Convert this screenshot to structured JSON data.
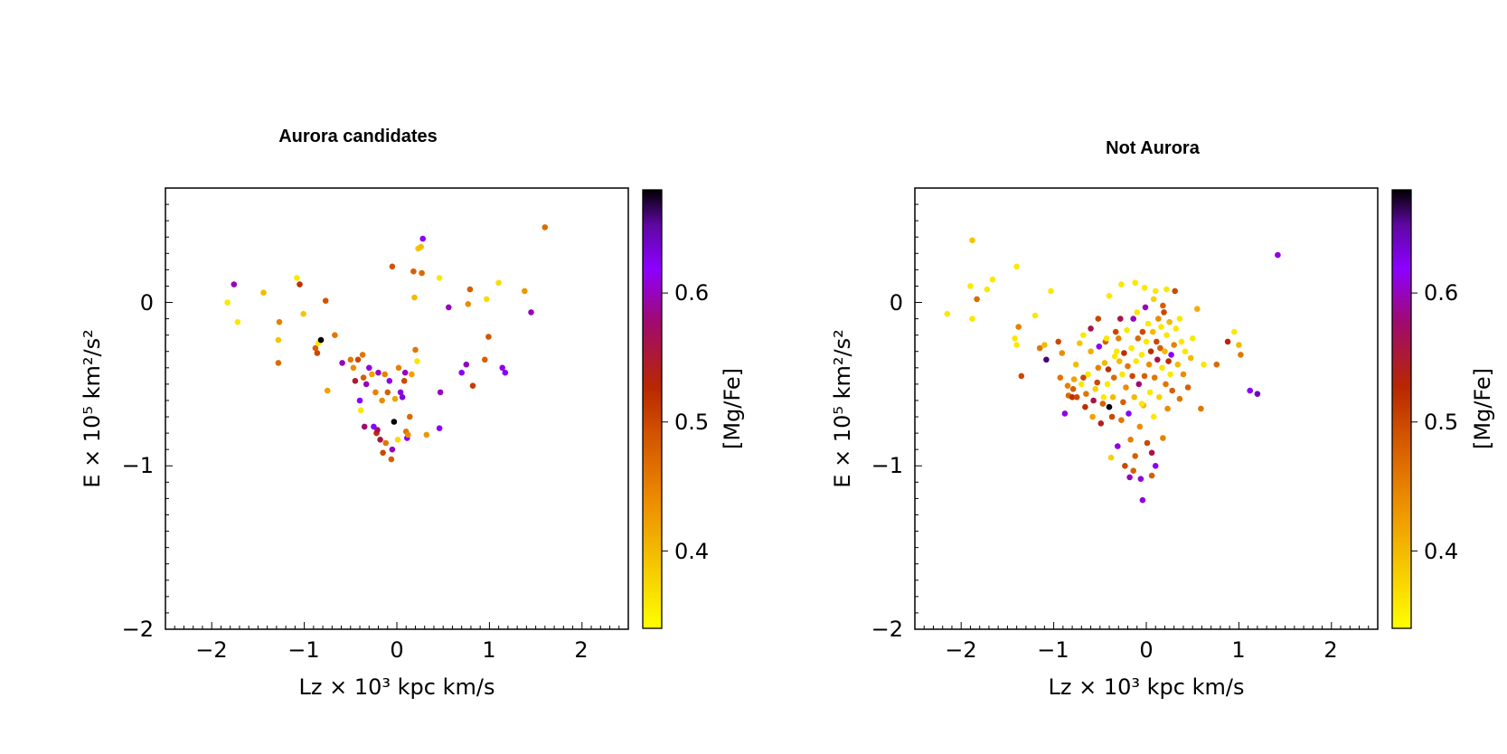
{
  "chart_data": [
    {
      "type": "scatter",
      "title": "Aurora candidates",
      "xlabel": "Lz × 10³ kpc km/s",
      "ylabel": "E × 10⁵ km²/s²",
      "colorbar_label": "[Mg/Fe]",
      "xlim": [
        -2.5,
        2.5
      ],
      "ylim": [
        -2.0,
        0.7
      ],
      "xticks": [
        -2,
        -1,
        0,
        1,
        2
      ],
      "yticks": [
        -2,
        -1,
        0
      ],
      "clim": [
        0.34,
        0.68
      ],
      "cticks": [
        0.4,
        0.5,
        0.6
      ],
      "points": [
        [
          -1.83,
          0.0,
          0.36
        ],
        [
          -1.76,
          0.11,
          0.6
        ],
        [
          -1.72,
          -0.12,
          0.36
        ],
        [
          -1.44,
          0.06,
          0.4
        ],
        [
          -1.28,
          -0.23,
          0.39
        ],
        [
          -1.27,
          -0.12,
          0.45
        ],
        [
          -1.28,
          -0.37,
          0.47
        ],
        [
          -1.08,
          0.15,
          0.36
        ],
        [
          -1.05,
          0.11,
          0.52
        ],
        [
          -1.01,
          -0.07,
          0.39
        ],
        [
          -0.88,
          -0.28,
          0.48
        ],
        [
          -0.86,
          -0.31,
          0.5
        ],
        [
          -0.85,
          -0.25,
          0.36
        ],
        [
          -0.82,
          -0.23,
          0.68
        ],
        [
          -0.77,
          0.01,
          0.49
        ],
        [
          -0.75,
          -0.54,
          0.42
        ],
        [
          -0.67,
          -0.2,
          0.46
        ],
        [
          -0.59,
          -0.37,
          0.6
        ],
        [
          -0.5,
          -0.35,
          0.46
        ],
        [
          -0.47,
          -0.4,
          0.44
        ],
        [
          -0.45,
          -0.48,
          0.55
        ],
        [
          -0.42,
          -0.35,
          0.5
        ],
        [
          -0.4,
          -0.6,
          0.62
        ],
        [
          -0.39,
          -0.66,
          0.36
        ],
        [
          -0.37,
          -0.32,
          0.46
        ],
        [
          -0.36,
          -0.46,
          0.48
        ],
        [
          -0.35,
          -0.76,
          0.58
        ],
        [
          -0.33,
          -0.5,
          0.6
        ],
        [
          -0.3,
          -0.4,
          0.61
        ],
        [
          -0.27,
          -0.44,
          0.42
        ],
        [
          -0.25,
          -0.76,
          0.62
        ],
        [
          -0.23,
          -0.55,
          0.45
        ],
        [
          -0.22,
          -0.8,
          0.52
        ],
        [
          -0.21,
          -0.78,
          0.57
        ],
        [
          -0.2,
          -0.43,
          0.6
        ],
        [
          -0.18,
          -0.84,
          0.56
        ],
        [
          -0.16,
          -0.6,
          0.44
        ],
        [
          -0.15,
          -0.92,
          0.5
        ],
        [
          -0.13,
          -0.44,
          0.45
        ],
        [
          -0.12,
          -0.86,
          0.46
        ],
        [
          -0.1,
          -0.55,
          0.48
        ],
        [
          -0.08,
          -0.48,
          0.61
        ],
        [
          -0.06,
          -0.96,
          0.48
        ],
        [
          -0.05,
          -0.9,
          0.6
        ],
        [
          -0.05,
          0.22,
          0.49
        ],
        [
          -0.03,
          -0.73,
          0.68
        ],
        [
          -0.02,
          -0.59,
          0.42
        ],
        [
          0.01,
          -0.84,
          0.37
        ],
        [
          0.02,
          -0.4,
          0.45
        ],
        [
          0.04,
          -0.55,
          0.61
        ],
        [
          0.06,
          -0.58,
          0.63
        ],
        [
          0.08,
          -0.48,
          0.5
        ],
        [
          0.09,
          -0.43,
          0.6
        ],
        [
          0.1,
          -0.79,
          0.46
        ],
        [
          0.11,
          -0.83,
          0.62
        ],
        [
          0.12,
          -0.81,
          0.44
        ],
        [
          0.14,
          -0.7,
          0.47
        ],
        [
          0.16,
          -0.44,
          0.42
        ],
        [
          0.18,
          0.19,
          0.48
        ],
        [
          0.19,
          0.03,
          0.4
        ],
        [
          0.2,
          -0.29,
          0.46
        ],
        [
          0.22,
          -0.36,
          0.36
        ],
        [
          0.23,
          0.33,
          0.39
        ],
        [
          0.26,
          0.34,
          0.4
        ],
        [
          0.27,
          0.18,
          0.47
        ],
        [
          0.28,
          0.39,
          0.62
        ],
        [
          0.32,
          -0.81,
          0.43
        ],
        [
          0.46,
          0.15,
          0.36
        ],
        [
          0.46,
          -0.77,
          0.62
        ],
        [
          0.47,
          -0.55,
          0.6
        ],
        [
          0.56,
          -0.03,
          0.6
        ],
        [
          0.7,
          -0.43,
          0.62
        ],
        [
          0.75,
          -0.38,
          0.6
        ],
        [
          0.77,
          -0.01,
          0.44
        ],
        [
          0.79,
          0.08,
          0.48
        ],
        [
          0.82,
          -0.51,
          0.51
        ],
        [
          0.95,
          -0.35,
          0.48
        ],
        [
          0.97,
          0.02,
          0.37
        ],
        [
          0.99,
          -0.21,
          0.49
        ],
        [
          1.1,
          0.12,
          0.37
        ],
        [
          1.14,
          -0.4,
          0.61
        ],
        [
          1.17,
          -0.43,
          0.62
        ],
        [
          1.38,
          0.07,
          0.43
        ],
        [
          1.45,
          -0.06,
          0.6
        ],
        [
          1.6,
          0.46,
          0.47
        ]
      ]
    },
    {
      "type": "scatter",
      "title": "Not Aurora",
      "xlabel": "Lz × 10³ kpc km/s",
      "ylabel": "E × 10⁵ km²/s²",
      "colorbar_label": "[Mg/Fe]",
      "xlim": [
        -2.5,
        2.5
      ],
      "ylim": [
        -2.0,
        0.7
      ],
      "xticks": [
        -2,
        -1,
        0,
        1,
        2
      ],
      "yticks": [
        -2,
        -1,
        0
      ],
      "clim": [
        0.34,
        0.68
      ],
      "cticks": [
        0.4,
        0.5,
        0.6
      ],
      "points": [
        [
          -2.15,
          -0.07,
          0.36
        ],
        [
          -1.88,
          0.38,
          0.39
        ],
        [
          -1.9,
          0.1,
          0.36
        ],
        [
          -1.88,
          -0.1,
          0.36
        ],
        [
          -1.83,
          0.02,
          0.47
        ],
        [
          -1.72,
          0.08,
          0.36
        ],
        [
          -1.66,
          0.14,
          0.36
        ],
        [
          -1.4,
          0.22,
          0.36
        ],
        [
          -1.42,
          -0.22,
          0.36
        ],
        [
          -1.4,
          -0.26,
          0.36
        ],
        [
          -1.35,
          -0.45,
          0.5
        ],
        [
          -1.38,
          -0.15,
          0.45
        ],
        [
          -1.2,
          -0.08,
          0.36
        ],
        [
          -1.15,
          -0.28,
          0.46
        ],
        [
          -1.1,
          -0.26,
          0.4
        ],
        [
          -1.08,
          -0.35,
          0.66
        ],
        [
          -1.03,
          0.07,
          0.36
        ],
        [
          -0.95,
          -0.24,
          0.5
        ],
        [
          -0.93,
          -0.46,
          0.46
        ],
        [
          -0.91,
          -0.31,
          0.44
        ],
        [
          -0.88,
          -0.68,
          0.61
        ],
        [
          -0.85,
          -0.51,
          0.45
        ],
        [
          -0.84,
          -0.57,
          0.47
        ],
        [
          -0.8,
          -0.58,
          0.52
        ],
        [
          -0.79,
          -0.53,
          0.48
        ],
        [
          -0.78,
          -0.47,
          0.42
        ],
        [
          -0.76,
          -0.38,
          0.4
        ],
        [
          -0.75,
          -0.58,
          0.5
        ],
        [
          -0.72,
          -0.25,
          0.39
        ],
        [
          -0.7,
          -0.5,
          0.36
        ],
        [
          -0.68,
          -0.46,
          0.5
        ],
        [
          -0.66,
          -0.64,
          0.52
        ],
        [
          -0.65,
          -0.56,
          0.46
        ],
        [
          -0.63,
          -0.44,
          0.36
        ],
        [
          -0.6,
          -0.3,
          0.41
        ],
        [
          -0.58,
          -0.7,
          0.42
        ],
        [
          -0.57,
          -0.6,
          0.56
        ],
        [
          -0.55,
          -0.53,
          0.38
        ],
        [
          -0.53,
          -0.49,
          0.5
        ],
        [
          -0.52,
          -0.4,
          0.45
        ],
        [
          -0.51,
          -0.27,
          0.62
        ],
        [
          -0.49,
          -0.74,
          0.54
        ],
        [
          -0.47,
          -0.62,
          0.48
        ],
        [
          -0.46,
          -0.58,
          0.36
        ],
        [
          -0.45,
          -0.37,
          0.4
        ],
        [
          -0.44,
          -0.24,
          0.48
        ],
        [
          -0.43,
          -0.22,
          0.36
        ],
        [
          -0.42,
          -0.5,
          0.36
        ],
        [
          -0.41,
          -0.41,
          0.52
        ],
        [
          -0.4,
          -0.64,
          0.68
        ],
        [
          -0.38,
          -0.95,
          0.38
        ],
        [
          -0.37,
          -0.7,
          0.5
        ],
        [
          -0.36,
          -0.58,
          0.4
        ],
        [
          -0.35,
          -0.46,
          0.47
        ],
        [
          -0.34,
          -0.33,
          0.36
        ],
        [
          -0.33,
          -0.18,
          0.5
        ],
        [
          -0.32,
          -0.3,
          0.36
        ],
        [
          -0.31,
          -0.88,
          0.61
        ],
        [
          -0.3,
          -0.22,
          0.45
        ],
        [
          -0.29,
          -0.36,
          0.4
        ],
        [
          -0.28,
          -0.1,
          0.56
        ],
        [
          -0.27,
          -0.72,
          0.46
        ],
        [
          -0.26,
          -0.44,
          0.36
        ],
        [
          -0.25,
          -0.61,
          0.48
        ],
        [
          -0.24,
          -0.31,
          0.52
        ],
        [
          -0.23,
          -1.0,
          0.5
        ],
        [
          -0.22,
          -0.52,
          0.44
        ],
        [
          -0.21,
          -0.17,
          0.36
        ],
        [
          -0.2,
          -0.39,
          0.46
        ],
        [
          -0.19,
          -0.68,
          0.62
        ],
        [
          -0.18,
          -1.07,
          0.6
        ],
        [
          -0.17,
          -0.84,
          0.45
        ],
        [
          -0.16,
          -0.28,
          0.36
        ],
        [
          -0.15,
          -0.45,
          0.5
        ],
        [
          -0.14,
          -0.1,
          0.6
        ],
        [
          -0.13,
          -0.58,
          0.4
        ],
        [
          -0.12,
          -0.94,
          0.48
        ],
        [
          -0.11,
          -0.36,
          0.36
        ],
        [
          -0.1,
          -0.06,
          0.36
        ],
        [
          -0.09,
          -0.22,
          0.47
        ],
        [
          -0.08,
          -0.5,
          0.58
        ],
        [
          -0.07,
          -0.76,
          0.44
        ],
        [
          -0.06,
          -1.08,
          0.61
        ],
        [
          -0.05,
          -0.32,
          0.36
        ],
        [
          -0.04,
          -0.18,
          0.5
        ],
        [
          -0.04,
          -1.21,
          0.61
        ],
        [
          -0.03,
          -0.63,
          0.4
        ],
        [
          -0.02,
          -0.45,
          0.48
        ],
        [
          -0.01,
          -0.03,
          0.6
        ],
        [
          0.0,
          -0.24,
          0.36
        ],
        [
          0.01,
          -0.86,
          0.5
        ],
        [
          0.02,
          -0.13,
          0.36
        ],
        [
          0.03,
          -0.38,
          0.44
        ],
        [
          0.04,
          -0.55,
          0.36
        ],
        [
          0.05,
          -0.3,
          0.52
        ],
        [
          0.06,
          -1.06,
          0.48
        ],
        [
          0.07,
          -0.18,
          0.4
        ],
        [
          0.08,
          -0.7,
          0.36
        ],
        [
          0.09,
          -0.46,
          0.46
        ],
        [
          0.1,
          -1.0,
          0.62
        ],
        [
          0.11,
          -0.24,
          0.5
        ],
        [
          0.12,
          -0.35,
          0.56
        ],
        [
          0.13,
          -0.1,
          0.44
        ],
        [
          0.14,
          -0.58,
          0.38
        ],
        [
          0.15,
          -0.28,
          0.48
        ],
        [
          0.16,
          -0.15,
          0.36
        ],
        [
          0.17,
          -0.4,
          0.36
        ],
        [
          0.18,
          -0.83,
          0.45
        ],
        [
          0.19,
          -0.06,
          0.5
        ],
        [
          0.2,
          -0.3,
          0.4
        ],
        [
          0.21,
          -0.5,
          0.46
        ],
        [
          0.22,
          -0.2,
          0.36
        ],
        [
          0.23,
          -0.65,
          0.44
        ],
        [
          0.24,
          -0.36,
          0.52
        ],
        [
          0.25,
          -0.12,
          0.4
        ],
        [
          0.26,
          -0.44,
          0.36
        ],
        [
          0.27,
          -0.32,
          0.62
        ],
        [
          0.28,
          -0.54,
          0.48
        ],
        [
          0.3,
          -0.26,
          0.45
        ],
        [
          0.31,
          0.07,
          0.5
        ],
        [
          0.32,
          -0.16,
          0.36
        ],
        [
          0.34,
          -0.38,
          0.4
        ],
        [
          0.36,
          -0.59,
          0.46
        ],
        [
          0.38,
          -0.24,
          0.36
        ],
        [
          0.4,
          -0.44,
          0.44
        ],
        [
          0.42,
          -0.3,
          0.36
        ],
        [
          0.45,
          -0.52,
          0.48
        ],
        [
          0.48,
          -0.34,
          0.4
        ],
        [
          0.5,
          -0.22,
          0.36
        ],
        [
          0.55,
          -0.04,
          0.41
        ],
        [
          0.59,
          -0.65,
          0.46
        ],
        [
          0.62,
          -0.38,
          0.36
        ],
        [
          0.76,
          -0.38,
          0.47
        ],
        [
          0.88,
          -0.24,
          0.53
        ],
        [
          0.95,
          -0.18,
          0.36
        ],
        [
          1.0,
          -0.26,
          0.4
        ],
        [
          1.02,
          -0.32,
          0.46
        ],
        [
          1.12,
          -0.54,
          0.62
        ],
        [
          1.2,
          -0.56,
          0.64
        ],
        [
          1.42,
          0.29,
          0.61
        ],
        [
          0.08,
          0.02,
          0.38
        ],
        [
          -0.02,
          0.09,
          0.36
        ],
        [
          -0.27,
          0.11,
          0.36
        ],
        [
          -0.12,
          0.12,
          0.36
        ],
        [
          0.1,
          0.07,
          0.36
        ],
        [
          0.22,
          0.08,
          0.36
        ],
        [
          -0.4,
          0.04,
          0.36
        ],
        [
          -0.52,
          -0.1,
          0.5
        ],
        [
          -0.6,
          -0.16,
          0.56
        ],
        [
          -0.68,
          -0.2,
          0.36
        ],
        [
          0.18,
          -0.02,
          0.48
        ],
        [
          0.36,
          -0.1,
          0.36
        ],
        [
          -0.05,
          -0.62,
          0.36
        ],
        [
          0.06,
          -0.92,
          0.56
        ],
        [
          -0.14,
          -1.03,
          0.48
        ]
      ]
    }
  ]
}
